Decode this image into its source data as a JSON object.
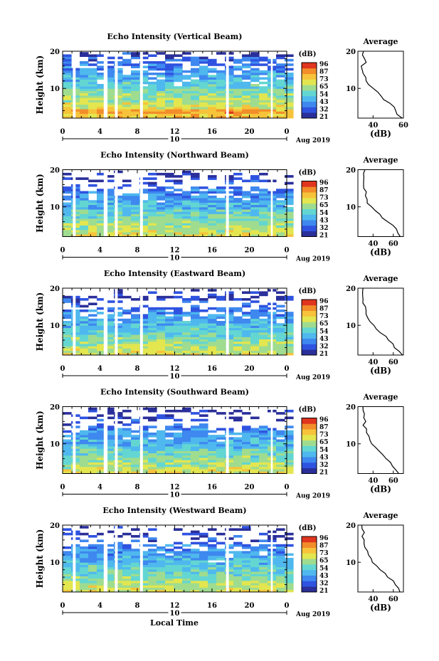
{
  "colors": {
    "scale": [
      "#2a2f9a",
      "#2f53e0",
      "#3e88ef",
      "#4fb8ee",
      "#63d6d2",
      "#9fdc8f",
      "#e3e64f",
      "#f6c33a",
      "#f28d2a",
      "#e0351e"
    ],
    "gap": "#ffffff",
    "profile_line": "#000000"
  },
  "shared": {
    "y_label": "Height (km)",
    "y_ticks": [
      "20",
      "10"
    ],
    "x_ticks": [
      "0",
      "4",
      "8",
      "12",
      "16",
      "20",
      "0"
    ],
    "date_day": "10",
    "date_month": "Aug 2019",
    "colorbar_unit": "(dB)",
    "colorbar_ticks": [
      "96",
      "87",
      "73",
      "65",
      "54",
      "43",
      "32",
      "21"
    ],
    "profile_title": "Average",
    "profile_y_ticks": [
      "20",
      "10"
    ],
    "profile_x_label": "(dB)",
    "x_label": "Local Time"
  },
  "chart_data": [
    {
      "type": "heatmap",
      "title": "Echo Intensity (Vertical Beam)",
      "ylabel": "Height (km)",
      "xlabel": "Local Time",
      "x_range_hours": [
        0,
        24
      ],
      "y_range_km": [
        2,
        20
      ],
      "data_gaps_hours": [
        [
          1.1,
          1.4
        ],
        [
          4.4,
          4.8
        ],
        [
          5.6,
          5.9
        ],
        [
          8.3,
          8.6
        ],
        [
          17.5,
          17.8
        ],
        [
          22.3,
          22.5
        ]
      ],
      "colorbar": {
        "unit": "(dB)",
        "ticks": [
          96,
          87,
          73,
          65,
          54,
          43,
          32,
          21
        ]
      },
      "profile": {
        "title": "Average",
        "xlabel": "(dB)",
        "x_ticks": [
          40,
          60
        ],
        "x_range": [
          30,
          60
        ],
        "y_range": [
          2,
          20
        ],
        "points": [
          [
            2,
            59
          ],
          [
            3,
            57
          ],
          [
            4,
            55
          ],
          [
            5,
            53
          ],
          [
            6,
            50
          ],
          [
            7,
            48
          ],
          [
            8,
            46
          ],
          [
            9,
            44
          ],
          [
            10,
            41
          ],
          [
            11,
            38
          ],
          [
            12,
            36
          ],
          [
            13,
            34
          ],
          [
            14,
            33
          ],
          [
            15,
            34
          ],
          [
            16,
            33
          ],
          [
            17,
            35
          ],
          [
            18,
            34
          ],
          [
            19,
            32
          ],
          [
            20,
            33
          ]
        ]
      }
    },
    {
      "type": "heatmap",
      "title": "Echo Intensity (Northward Beam)",
      "ylabel": "Height (km)",
      "xlabel": "Local Time",
      "x_range_hours": [
        0,
        24
      ],
      "y_range_km": [
        2,
        20
      ],
      "data_gaps_hours": [
        [
          1.1,
          1.4
        ],
        [
          4.4,
          4.8
        ],
        [
          5.6,
          5.9
        ],
        [
          8.3,
          8.6
        ],
        [
          17.5,
          17.8
        ],
        [
          22.3,
          22.5
        ]
      ],
      "colorbar": {
        "unit": "(dB)",
        "ticks": [
          96,
          87,
          73,
          65,
          54,
          43,
          32,
          21
        ]
      },
      "profile": {
        "title": "Average",
        "xlabel": "(dB)",
        "x_ticks": [
          40,
          60
        ],
        "x_range": [
          25,
          70
        ],
        "y_range": [
          2,
          20
        ],
        "points": [
          [
            2,
            68
          ],
          [
            3,
            64
          ],
          [
            4,
            62
          ],
          [
            5,
            60
          ],
          [
            6,
            55
          ],
          [
            7,
            50
          ],
          [
            8,
            47
          ],
          [
            9,
            42
          ],
          [
            10,
            38
          ],
          [
            11,
            35
          ],
          [
            12,
            33
          ],
          [
            13,
            32
          ],
          [
            14,
            33
          ],
          [
            15,
            31
          ],
          [
            16,
            30
          ],
          [
            17,
            31
          ],
          [
            18,
            30
          ],
          [
            19,
            30
          ],
          [
            20,
            31
          ]
        ]
      }
    },
    {
      "type": "heatmap",
      "title": "Echo Intensity (Eastward Beam)",
      "ylabel": "Height (km)",
      "xlabel": "Local Time",
      "x_range_hours": [
        0,
        24
      ],
      "y_range_km": [
        2,
        20
      ],
      "data_gaps_hours": [
        [
          1.1,
          1.4
        ],
        [
          4.4,
          4.8
        ],
        [
          5.6,
          5.9
        ],
        [
          8.3,
          8.6
        ],
        [
          17.5,
          17.8
        ],
        [
          22.3,
          22.5
        ]
      ],
      "colorbar": {
        "unit": "(dB)",
        "ticks": [
          96,
          87,
          73,
          65,
          54,
          43,
          32,
          21
        ]
      },
      "profile": {
        "title": "Average",
        "xlabel": "(dB)",
        "x_ticks": [
          40,
          60
        ],
        "x_range": [
          25,
          70
        ],
        "y_range": [
          2,
          20
        ],
        "points": [
          [
            2,
            68
          ],
          [
            3,
            65
          ],
          [
            4,
            62
          ],
          [
            5,
            60
          ],
          [
            6,
            56
          ],
          [
            7,
            52
          ],
          [
            8,
            48
          ],
          [
            9,
            44
          ],
          [
            10,
            40
          ],
          [
            11,
            37
          ],
          [
            12,
            35
          ],
          [
            13,
            33
          ],
          [
            14,
            32
          ],
          [
            15,
            32
          ],
          [
            16,
            31
          ],
          [
            17,
            30
          ],
          [
            18,
            30
          ],
          [
            19,
            29
          ],
          [
            20,
            30
          ]
        ]
      }
    },
    {
      "type": "heatmap",
      "title": "Echo Intensity (Southward Beam)",
      "ylabel": "Height (km)",
      "xlabel": "Local Time",
      "x_range_hours": [
        0,
        24
      ],
      "y_range_km": [
        2,
        20
      ],
      "data_gaps_hours": [
        [
          1.1,
          1.4
        ],
        [
          4.4,
          4.8
        ],
        [
          5.6,
          5.9
        ],
        [
          8.3,
          8.6
        ],
        [
          17.5,
          17.8
        ],
        [
          22.3,
          22.5
        ]
      ],
      "colorbar": {
        "unit": "(dB)",
        "ticks": [
          96,
          87,
          73,
          65,
          54,
          43,
          32,
          21
        ]
      },
      "profile": {
        "title": "Average",
        "xlabel": "(dB)",
        "x_ticks": [
          40,
          60
        ],
        "x_range": [
          25,
          70
        ],
        "y_range": [
          2,
          20
        ],
        "points": [
          [
            2,
            66
          ],
          [
            3,
            63
          ],
          [
            4,
            60
          ],
          [
            5,
            57
          ],
          [
            6,
            54
          ],
          [
            7,
            50
          ],
          [
            8,
            46
          ],
          [
            9,
            42
          ],
          [
            10,
            39
          ],
          [
            11,
            37
          ],
          [
            12,
            35
          ],
          [
            13,
            34
          ],
          [
            14,
            33
          ],
          [
            15,
            31
          ],
          [
            16,
            32
          ],
          [
            17,
            30
          ],
          [
            18,
            31
          ],
          [
            19,
            30
          ],
          [
            20,
            30
          ]
        ]
      }
    },
    {
      "type": "heatmap",
      "title": "Echo Intensity (Westward Beam)",
      "ylabel": "Height (km)",
      "xlabel": "Local Time",
      "x_range_hours": [
        0,
        24
      ],
      "y_range_km": [
        2,
        20
      ],
      "data_gaps_hours": [
        [
          1.1,
          1.4
        ],
        [
          4.4,
          4.8
        ],
        [
          5.6,
          5.9
        ],
        [
          8.3,
          8.6
        ],
        [
          17.5,
          17.8
        ],
        [
          22.3,
          22.5
        ]
      ],
      "colorbar": {
        "unit": "(dB)",
        "ticks": [
          96,
          87,
          73,
          65,
          54,
          43,
          32,
          21
        ]
      },
      "profile": {
        "title": "Average",
        "xlabel": "(dB)",
        "x_ticks": [
          40,
          60
        ],
        "x_range": [
          25,
          70
        ],
        "y_range": [
          2,
          20
        ],
        "points": [
          [
            2,
            67
          ],
          [
            3,
            65
          ],
          [
            4,
            62
          ],
          [
            5,
            59
          ],
          [
            6,
            55
          ],
          [
            7,
            51
          ],
          [
            8,
            47
          ],
          [
            9,
            43
          ],
          [
            10,
            40
          ],
          [
            11,
            38
          ],
          [
            12,
            36
          ],
          [
            13,
            34
          ],
          [
            14,
            33
          ],
          [
            15,
            32
          ],
          [
            16,
            31
          ],
          [
            17,
            30
          ],
          [
            18,
            31
          ],
          [
            19,
            30
          ],
          [
            20,
            30
          ]
        ]
      }
    }
  ]
}
